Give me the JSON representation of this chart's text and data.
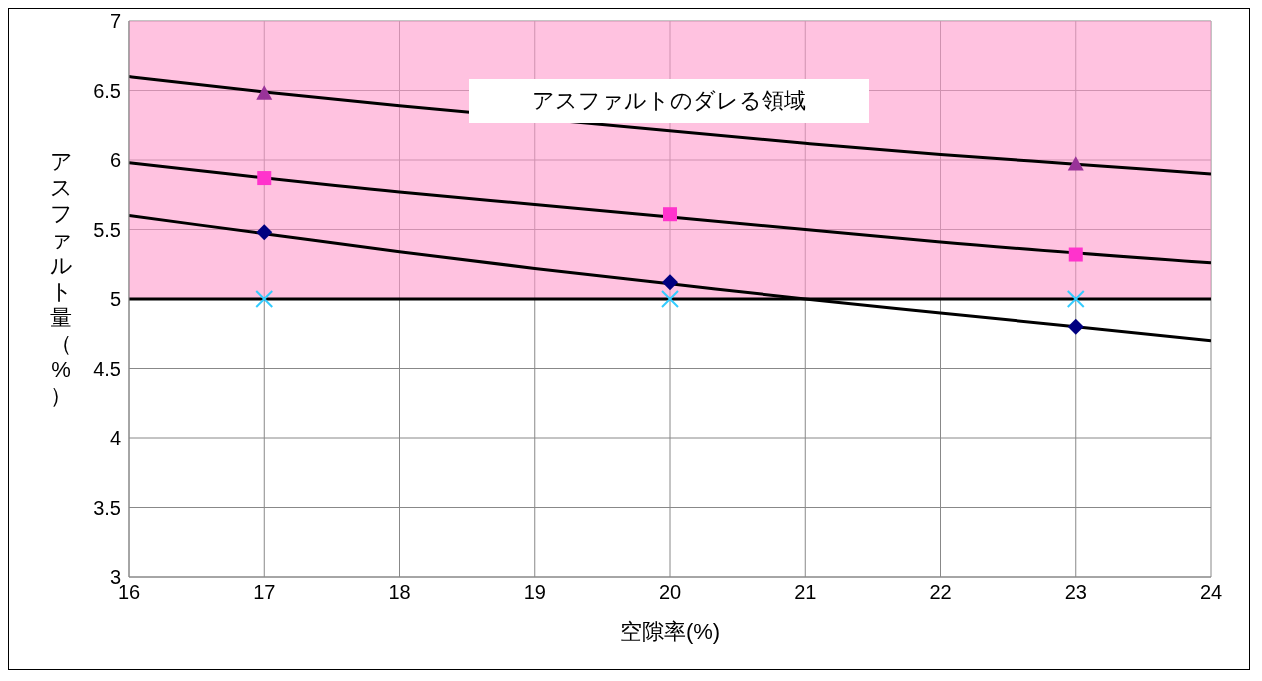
{
  "chart_data": {
    "type": "scatter",
    "xlabel": "空隙率(%)",
    "ylabel": "アスファルト量（%）",
    "xlim": [
      16,
      24
    ],
    "xticks": [
      16,
      17,
      18,
      19,
      20,
      21,
      22,
      23,
      24
    ],
    "ylim": [
      3,
      7
    ],
    "yticks": [
      3,
      3.5,
      4,
      4.5,
      5,
      5.5,
      6,
      6.5,
      7
    ],
    "grid": true,
    "legend": false,
    "series": [
      {
        "marker": "triangle",
        "color": "#993399",
        "x": [
          17,
          23
        ],
        "values": [
          6.48,
          5.97
        ]
      },
      {
        "marker": "square",
        "color": "#ff33cc",
        "x": [
          17,
          20,
          23
        ],
        "values": [
          5.87,
          5.61,
          5.32
        ]
      },
      {
        "marker": "diamond",
        "color": "#000080",
        "x": [
          17,
          20,
          23
        ],
        "values": [
          5.48,
          5.12,
          4.8
        ]
      },
      {
        "marker": "cross",
        "color": "#33ccff",
        "x": [
          17,
          20,
          23
        ],
        "values": [
          5,
          5,
          5
        ]
      },
      {
        "type": "line",
        "marker": "none",
        "color": "#000000",
        "x": [
          16,
          17,
          18,
          19,
          20,
          21,
          22,
          23,
          24
        ],
        "values": [
          6.6,
          6.49,
          6.39,
          null,
          null,
          6.12,
          6.04,
          5.97,
          5.9
        ]
      },
      {
        "type": "line",
        "marker": "none",
        "color": "#000000",
        "x": [
          16,
          18,
          19,
          21,
          22,
          24
        ],
        "values": [
          5.98,
          5.77,
          5.68,
          5.5,
          5.41,
          5.26
        ]
      },
      {
        "type": "line",
        "marker": "none",
        "color": "#000000",
        "x": [
          16,
          17,
          18,
          19,
          20,
          21,
          22,
          24
        ],
        "values": [
          5.6,
          5.47,
          5.34,
          5.22,
          5.11,
          5,
          4.9,
          4.7
        ]
      }
    ],
    "ref_lines": [
      {
        "axis": "y",
        "value": 5,
        "color": "#000000"
      }
    ],
    "bands": [
      {
        "axis": "y",
        "from": 5,
        "to": 7,
        "color": "#ff99cc",
        "label": "アスファルトのダレる領域"
      }
    ]
  }
}
